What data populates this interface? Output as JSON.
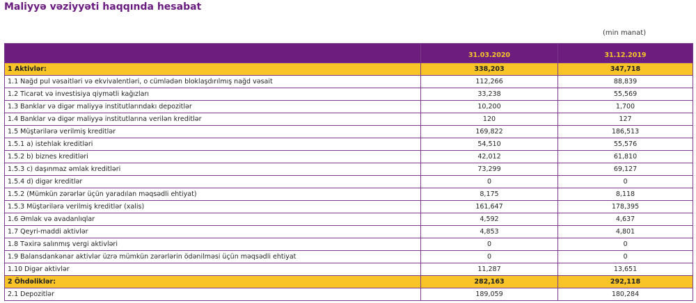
{
  "header": {
    "title": "Maliyyə vəziyyəti haqqında hesabat",
    "unit": "(min manat)"
  },
  "table": {
    "columns": [
      "31.03.2020",
      "31.12.2019"
    ],
    "highlighted_rows": [
      0,
      17
    ],
    "rows": [
      [
        "1 Aktivlər:",
        "338,203",
        "347,718"
      ],
      [
        "1.1 Nağd pul vəsaitləri və ekvivalentləri, o cümlədən bloklaşdırılmış nağd vəsait",
        "112,266",
        "88,839"
      ],
      [
        "1.2 Ticarət və investisiya qiymətli kağızları",
        "33,238",
        "55,569"
      ],
      [
        "1.3 Banklar və digər maliyyə institutlarındakı depozitlər",
        "10,200",
        "1,700"
      ],
      [
        "1.4 Banklar və digər maliyyə institutlarına verilən kreditlər",
        "120",
        "127"
      ],
      [
        "1.5 Müştərilərə verilmiş kreditlər",
        "169,822",
        "186,513"
      ],
      [
        "1.5.1 a) istehlak kreditləri",
        "54,510",
        "55,576"
      ],
      [
        "1.5.2 b) biznes kreditləri",
        "42,012",
        "61,810"
      ],
      [
        "1.5.3 c) daşınmaz əmlak kreditləri",
        "73,299",
        "69,127"
      ],
      [
        "1.5.4 d) digər kreditlər",
        "0",
        "0"
      ],
      [
        "1.5.2 (Mümkün zərərlər üçün yaradılan məqsədli ehtiyat)",
        "8,175",
        "8,118"
      ],
      [
        "1.5.3 Müştərilərə verilmiş kreditlər (xalis)",
        "161,647",
        "178,395"
      ],
      [
        "1.6 Əmlak və avadanlıqlar",
        "4,592",
        "4,637"
      ],
      [
        "1.7 Qeyri-maddi aktivlər",
        "4,853",
        "4,801"
      ],
      [
        "1.8 Təxirə salınmış vergi aktivləri",
        "0",
        "0"
      ],
      [
        "1.9 Balansdankənar aktivlər üzrə mümkün zərərlərin ödənilməsi üçün məqsədli ehtiyat",
        "0",
        "0"
      ],
      [
        "1.10 Digər aktivlər",
        "11,287",
        "13,651"
      ],
      [
        "2 Öhdəliklər:",
        "282,163",
        "292,118"
      ],
      [
        "2.1 Depozitlər",
        "189,059",
        "180,284"
      ]
    ]
  }
}
